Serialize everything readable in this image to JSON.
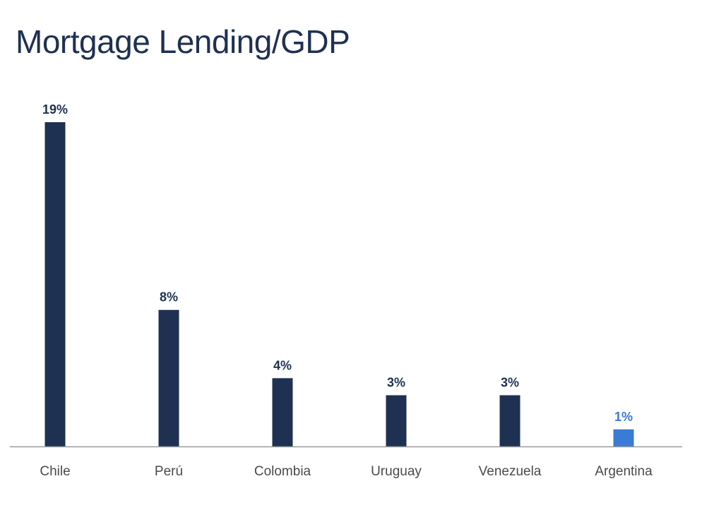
{
  "chart_data": {
    "type": "bar",
    "title": "Mortgage Lending/GDP",
    "categories": [
      "Chile",
      "Perú",
      "Colombia",
      "Uruguay",
      "Venezuela",
      "Argentina"
    ],
    "values": [
      19,
      8,
      4,
      3,
      3,
      1
    ],
    "data_labels": [
      "19%",
      "8%",
      "4%",
      "3%",
      "3%",
      "1%"
    ],
    "unit": "%",
    "ylim": [
      0,
      19
    ],
    "grid": false,
    "legend": "none",
    "bar_colors": [
      "#1f3152",
      "#1f3152",
      "#1f3152",
      "#1f3152",
      "#1f3152",
      "#3a7bd5"
    ],
    "axis_color": "#9a9a9a"
  }
}
